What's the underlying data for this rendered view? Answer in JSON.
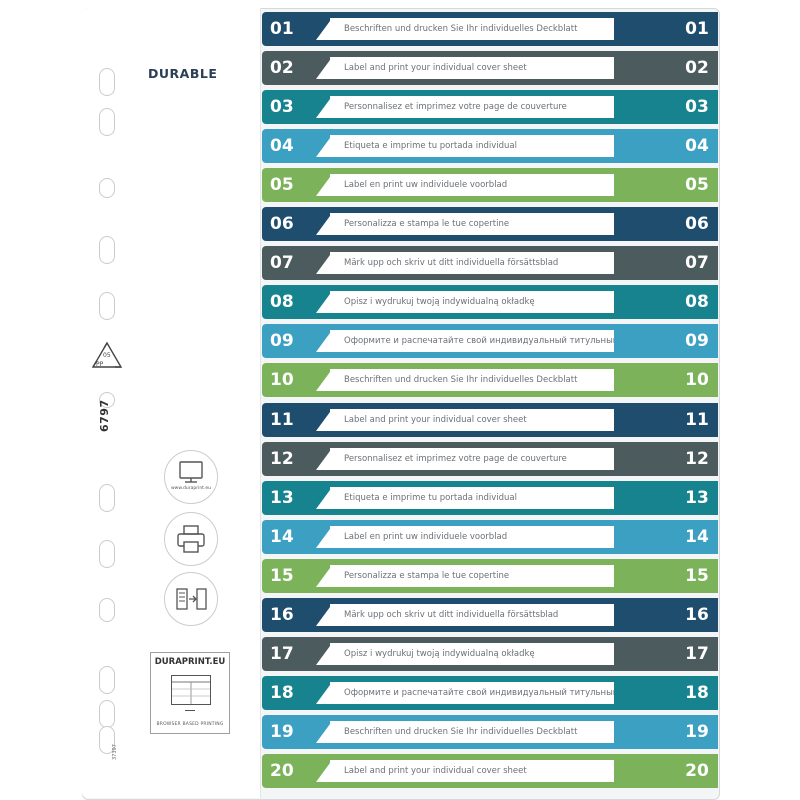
{
  "brand": {
    "name": "DURABLE",
    "color": "#2b3f55"
  },
  "recycle": {
    "code": "05",
    "material": "PP"
  },
  "product_code": "6797",
  "small_code": "37397",
  "icons": [
    {
      "name": "monitor-icon",
      "caption": "www.duraprint.eu"
    },
    {
      "name": "printer-icon",
      "caption": ""
    },
    {
      "name": "insert-sheet-icon",
      "caption": ""
    }
  ],
  "duraprint": {
    "title": "DURAPRINT.EU",
    "subtitle": "BROWSER BASED PRINTING"
  },
  "palette": [
    "#1e4d6e",
    "#4c5b5e",
    "#17838f",
    "#3ca0c2",
    "#7cb35a"
  ],
  "rows": [
    {
      "num": "01",
      "text": "Beschriften und drucken Sie Ihr individuelles Deckblatt"
    },
    {
      "num": "02",
      "text": "Label and print your individual cover sheet"
    },
    {
      "num": "03",
      "text": "Personnalisez et imprimez votre page de couverture"
    },
    {
      "num": "04",
      "text": "Etiqueta e imprime tu portada individual"
    },
    {
      "num": "05",
      "text": "Label en print uw individuele voorblad"
    },
    {
      "num": "06",
      "text": "Personalizza e stampa le tue copertine"
    },
    {
      "num": "07",
      "text": "Märk upp och skriv ut ditt individuella försättsblad"
    },
    {
      "num": "08",
      "text": "Opisz i wydrukuj twoją indywidualną okładkę"
    },
    {
      "num": "09",
      "text": "Оформите и распечатайте свой индивидуальный титульный лист"
    },
    {
      "num": "10",
      "text": "Beschriften und drucken Sie Ihr individuelles Deckblatt"
    },
    {
      "num": "11",
      "text": "Label and print your individual cover sheet"
    },
    {
      "num": "12",
      "text": "Personnalisez et imprimez votre page de couverture"
    },
    {
      "num": "13",
      "text": "Etiqueta e imprime tu portada individual"
    },
    {
      "num": "14",
      "text": "Label en print uw individuele voorblad"
    },
    {
      "num": "15",
      "text": "Personalizza e stampa le tue copertine"
    },
    {
      "num": "16",
      "text": "Märk upp och skriv ut ditt individuella försättsblad"
    },
    {
      "num": "17",
      "text": "Opisz i wydrukuj twoją indywidualną okładkę"
    },
    {
      "num": "18",
      "text": "Оформите и распечатайте свой индивидуальный титульный лист"
    },
    {
      "num": "19",
      "text": "Beschriften und drucken Sie Ihr individuelles Deckblatt"
    },
    {
      "num": "20",
      "text": "Label and print your individual cover sheet"
    }
  ]
}
